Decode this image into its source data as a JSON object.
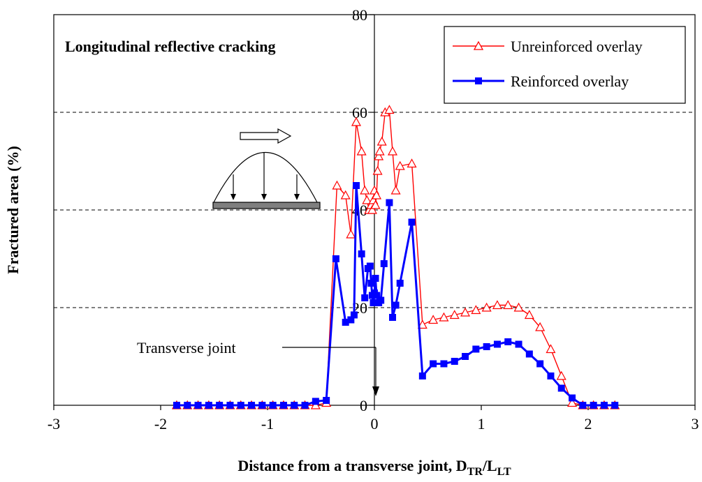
{
  "chart_data": {
    "type": "line",
    "title": "",
    "annotation_title": "Longitudinal reflective cracking",
    "joint_label": "Transverse joint",
    "xlabel": "Distance from a transverse joint, D",
    "xlabel_sub1": "TR",
    "xlabel_mid": "/L",
    "xlabel_sub2": "LT",
    "ylabel": "Fractured area (%)",
    "xlim": [
      -3,
      3
    ],
    "ylim": [
      0,
      80
    ],
    "x_ticks": [
      "-3",
      "-2",
      "-1",
      "0",
      "1",
      "2",
      "3"
    ],
    "y_ticks": [
      "0",
      "20",
      "40",
      "60",
      "80"
    ],
    "grid": "horizontal dashed",
    "legend_position": "top-right",
    "series": [
      {
        "name": "Unreinforced overlay",
        "color": "#ff0000",
        "marker": "open-triangle",
        "points": [
          [
            -1.85,
            0
          ],
          [
            -1.75,
            0
          ],
          [
            -1.65,
            0
          ],
          [
            -1.55,
            0
          ],
          [
            -1.45,
            0
          ],
          [
            -1.35,
            0
          ],
          [
            -1.25,
            0
          ],
          [
            -1.15,
            0
          ],
          [
            -1.05,
            0
          ],
          [
            -0.95,
            0
          ],
          [
            -0.85,
            0
          ],
          [
            -0.75,
            0
          ],
          [
            -0.65,
            0
          ],
          [
            -0.55,
            0
          ],
          [
            -0.45,
            0.5
          ],
          [
            -0.35,
            45
          ],
          [
            -0.27,
            43
          ],
          [
            -0.22,
            35
          ],
          [
            -0.17,
            58
          ],
          [
            -0.12,
            52
          ],
          [
            -0.09,
            44
          ],
          [
            -0.07,
            42
          ],
          [
            -0.05,
            40
          ],
          [
            -0.03,
            41
          ],
          [
            -0.02,
            40
          ],
          [
            -0.01,
            42
          ],
          [
            0.0,
            44
          ],
          [
            0.01,
            41
          ],
          [
            0.02,
            43
          ],
          [
            0.03,
            48
          ],
          [
            0.04,
            51
          ],
          [
            0.05,
            52
          ],
          [
            0.07,
            54
          ],
          [
            0.1,
            60
          ],
          [
            0.14,
            60.5
          ],
          [
            0.17,
            52
          ],
          [
            0.2,
            44
          ],
          [
            0.24,
            49
          ],
          [
            0.35,
            49.5
          ],
          [
            0.45,
            16.5
          ],
          [
            0.55,
            17.5
          ],
          [
            0.65,
            18
          ],
          [
            0.75,
            18.5
          ],
          [
            0.85,
            19
          ],
          [
            0.95,
            19.5
          ],
          [
            1.05,
            20
          ],
          [
            1.15,
            20.5
          ],
          [
            1.25,
            20.5
          ],
          [
            1.35,
            20
          ],
          [
            1.45,
            18.5
          ],
          [
            1.55,
            16
          ],
          [
            1.65,
            11.5
          ],
          [
            1.75,
            6
          ],
          [
            1.85,
            0.5
          ],
          [
            1.95,
            0
          ],
          [
            2.05,
            0
          ],
          [
            2.15,
            0
          ],
          [
            2.25,
            0
          ]
        ]
      },
      {
        "name": "Reinforced overlay",
        "color": "#0000ff",
        "marker": "filled-square",
        "points": [
          [
            -1.85,
            0
          ],
          [
            -1.75,
            0
          ],
          [
            -1.65,
            0
          ],
          [
            -1.55,
            0
          ],
          [
            -1.45,
            0
          ],
          [
            -1.35,
            0
          ],
          [
            -1.25,
            0
          ],
          [
            -1.15,
            0
          ],
          [
            -1.05,
            0
          ],
          [
            -0.95,
            0
          ],
          [
            -0.85,
            0
          ],
          [
            -0.75,
            0
          ],
          [
            -0.65,
            0
          ],
          [
            -0.55,
            0.8
          ],
          [
            -0.45,
            1
          ],
          [
            -0.36,
            30
          ],
          [
            -0.27,
            17
          ],
          [
            -0.22,
            17.5
          ],
          [
            -0.19,
            18.5
          ],
          [
            -0.17,
            45
          ],
          [
            -0.12,
            31
          ],
          [
            -0.09,
            22
          ],
          [
            -0.06,
            28
          ],
          [
            -0.04,
            28.5
          ],
          [
            -0.03,
            25
          ],
          [
            -0.02,
            22.5
          ],
          [
            -0.01,
            21
          ],
          [
            0.0,
            23
          ],
          [
            0.01,
            26
          ],
          [
            0.02,
            22.5
          ],
          [
            0.04,
            21
          ],
          [
            0.06,
            21.5
          ],
          [
            0.09,
            29
          ],
          [
            0.14,
            41.5
          ],
          [
            0.17,
            18
          ],
          [
            0.2,
            20.5
          ],
          [
            0.24,
            25
          ],
          [
            0.35,
            37.5
          ],
          [
            0.45,
            6
          ],
          [
            0.55,
            8.5
          ],
          [
            0.65,
            8.5
          ],
          [
            0.75,
            9
          ],
          [
            0.85,
            10
          ],
          [
            0.95,
            11.5
          ],
          [
            1.05,
            12
          ],
          [
            1.15,
            12.5
          ],
          [
            1.25,
            13
          ],
          [
            1.35,
            12.5
          ],
          [
            1.45,
            10.5
          ],
          [
            1.55,
            8.5
          ],
          [
            1.65,
            6
          ],
          [
            1.75,
            3.5
          ],
          [
            1.85,
            1.5
          ],
          [
            1.95,
            0
          ],
          [
            2.05,
            0
          ],
          [
            2.15,
            0
          ],
          [
            2.25,
            0
          ]
        ]
      }
    ]
  }
}
